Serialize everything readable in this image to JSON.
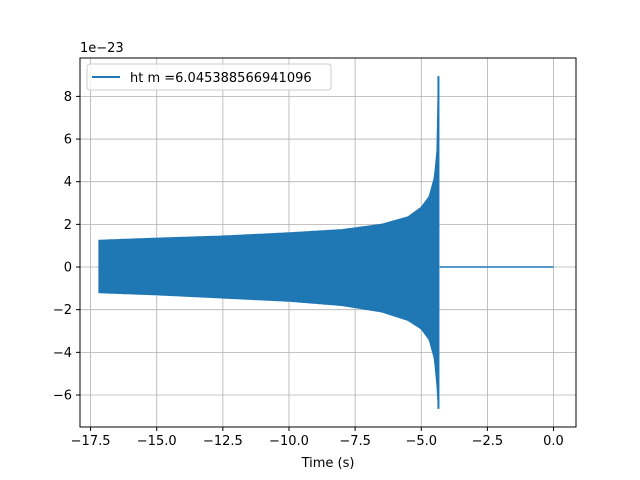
{
  "chart_data": {
    "type": "line",
    "title": "",
    "xlabel": "Time (s)",
    "ylabel": "",
    "y_offset_label": "1e−23",
    "y_scale_exponent": -23,
    "xlim": [
      -17.9,
      0.85
    ],
    "ylim": [
      -7.5,
      9.8
    ],
    "x_ticks": [
      -17.5,
      -15.0,
      -12.5,
      -10.0,
      -7.5,
      -5.0,
      -2.5,
      0.0
    ],
    "x_tick_labels": [
      "−17.5",
      "−15.0",
      "−12.5",
      "−10.0",
      "−7.5",
      "−5.0",
      "−2.5",
      "0.0"
    ],
    "y_ticks": [
      -6,
      -4,
      -2,
      0,
      2,
      4,
      6,
      8
    ],
    "y_tick_labels": [
      "−6",
      "−4",
      "−2",
      "0",
      "2",
      "4",
      "6",
      "8"
    ],
    "grid": true,
    "legend": "upper-left",
    "series": [
      {
        "name": "ht m =6.045388566941096",
        "color": "#1f77b4",
        "description_points": {
          "envelope_x": [
            -17.2,
            -15.0,
            -12.5,
            -10.0,
            -8.0,
            -6.5,
            -5.5,
            -5.0,
            -4.7,
            -4.5,
            -4.4,
            -4.35
          ],
          "envelope_upper": [
            1.25,
            1.35,
            1.45,
            1.6,
            1.75,
            2.0,
            2.35,
            2.8,
            3.3,
            4.2,
            5.5,
            8.95
          ],
          "envelope_lower": [
            -1.2,
            -1.3,
            -1.45,
            -1.6,
            -1.8,
            -2.1,
            -2.5,
            -2.9,
            -3.4,
            -4.3,
            -5.6,
            -6.65
          ],
          "post_merger_x": [
            -4.3,
            0.0
          ],
          "post_merger_y": [
            0.0,
            0.0
          ]
        }
      }
    ]
  }
}
